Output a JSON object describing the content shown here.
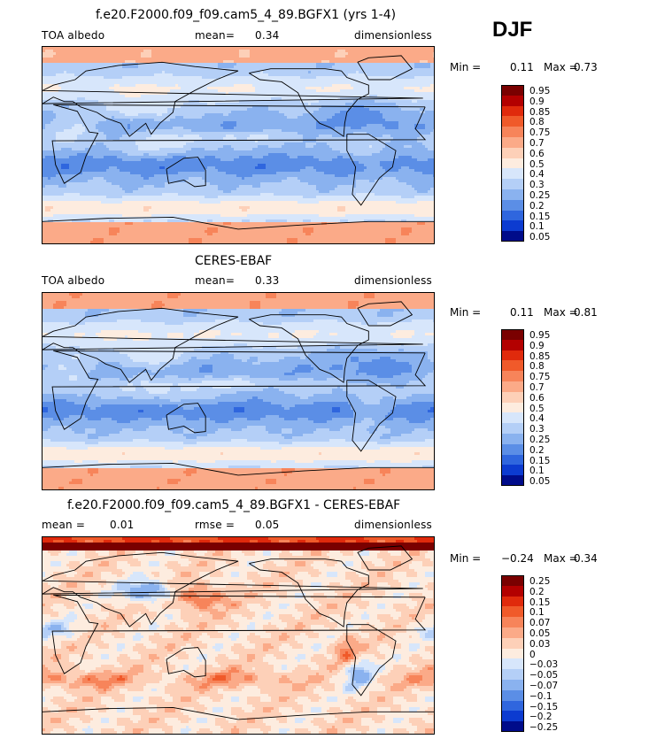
{
  "season": "DJF",
  "panels": [
    {
      "id": "model",
      "title": "f.e20.F2000.f09_f09.cam5_4_89.BGFX1 (yrs 1-4)",
      "left_label": "TOA albedo",
      "mid_label": "mean=",
      "mid_value": "0.34",
      "mid2_label": "",
      "mid2_value": "",
      "right_label": "dimensionless",
      "min_label": "Min =",
      "min_value": "0.11",
      "max_label": "Max =",
      "max_value": "0.73",
      "colorbar": {
        "labels": [
          "0.95",
          "0.9",
          "0.85",
          "0.8",
          "0.75",
          "0.7",
          "0.6",
          "0.5",
          "0.4",
          "0.3",
          "0.25",
          "0.2",
          "0.15",
          "0.1",
          "0.05"
        ],
        "colors": [
          "#7a0000",
          "#b30000",
          "#e02a0c",
          "#f05a2a",
          "#f7845a",
          "#fbaa88",
          "#fdd0b8",
          "#fdecdf",
          "#d7e6fb",
          "#b4cff7",
          "#8ab2ef",
          "#5b8ee6",
          "#2f66de",
          "#0c3bd0",
          "#000c8a"
        ]
      },
      "field": "albedo_model"
    },
    {
      "id": "obs",
      "title": "CERES-EBAF",
      "left_label": "TOA albedo",
      "mid_label": "mean=",
      "mid_value": "0.33",
      "mid2_label": "",
      "mid2_value": "",
      "right_label": "dimensionless",
      "min_label": "Min =",
      "min_value": "0.11",
      "max_label": "Max =",
      "max_value": "0.81",
      "colorbar": {
        "labels": [
          "0.95",
          "0.9",
          "0.85",
          "0.8",
          "0.75",
          "0.7",
          "0.6",
          "0.5",
          "0.4",
          "0.3",
          "0.25",
          "0.2",
          "0.15",
          "0.1",
          "0.05"
        ],
        "colors": [
          "#7a0000",
          "#b30000",
          "#e02a0c",
          "#f05a2a",
          "#f7845a",
          "#fbaa88",
          "#fdd0b8",
          "#fdecdf",
          "#d7e6fb",
          "#b4cff7",
          "#8ab2ef",
          "#5b8ee6",
          "#2f66de",
          "#0c3bd0",
          "#000c8a"
        ]
      },
      "field": "albedo_obs"
    },
    {
      "id": "diff",
      "title": "f.e20.F2000.f09_f09.cam5_4_89.BGFX1 - CERES-EBAF",
      "left_label": "mean =",
      "mid_label": "0.01",
      "mid_value": "",
      "mid2_label": "rmse =",
      "mid2_value": "0.05",
      "right_label": "dimensionless",
      "min_label": "Min =",
      "min_value": "−0.24",
      "max_label": "Max =",
      "max_value": "0.34",
      "colorbar": {
        "labels": [
          "0.25",
          "0.2",
          "0.15",
          "0.1",
          "0.07",
          "0.05",
          "0.03",
          "0",
          "−0.03",
          "−0.05",
          "−0.07",
          "−0.1",
          "−0.15",
          "−0.2",
          "−0.25"
        ],
        "colors": [
          "#7a0000",
          "#b30000",
          "#e02a0c",
          "#f05a2a",
          "#f7845a",
          "#fbaa88",
          "#fdd0b8",
          "#fdecdf",
          "#d7e6fb",
          "#b4cff7",
          "#8ab2ef",
          "#5b8ee6",
          "#2f66de",
          "#0c3bd0",
          "#000c8a"
        ]
      },
      "field": "albedo_diff"
    }
  ],
  "chart_data": [
    {
      "type": "heatmap",
      "title": "f.e20.F2000.f09_f09.cam5_4_89.BGFX1 (yrs 1-4)",
      "variable": "TOA albedo",
      "units": "dimensionless",
      "mean": 0.34,
      "min": 0.11,
      "max": 0.73,
      "contour_levels": [
        0.05,
        0.1,
        0.15,
        0.2,
        0.25,
        0.3,
        0.4,
        0.5,
        0.6,
        0.7,
        0.75,
        0.8,
        0.85,
        0.9,
        0.95
      ],
      "projection": "global cylindrical equidistant"
    },
    {
      "type": "heatmap",
      "title": "CERES-EBAF",
      "variable": "TOA albedo",
      "units": "dimensionless",
      "mean": 0.33,
      "min": 0.11,
      "max": 0.81,
      "contour_levels": [
        0.05,
        0.1,
        0.15,
        0.2,
        0.25,
        0.3,
        0.4,
        0.5,
        0.6,
        0.7,
        0.75,
        0.8,
        0.85,
        0.9,
        0.95
      ],
      "projection": "global cylindrical equidistant"
    },
    {
      "type": "heatmap",
      "title": "f.e20.F2000.f09_f09.cam5_4_89.BGFX1 - CERES-EBAF",
      "units": "dimensionless",
      "mean": 0.01,
      "rmse": 0.05,
      "min": -0.24,
      "max": 0.34,
      "contour_levels": [
        -0.25,
        -0.2,
        -0.15,
        -0.1,
        -0.07,
        -0.05,
        -0.03,
        0,
        0.03,
        0.05,
        0.07,
        0.1,
        0.15,
        0.2,
        0.25
      ],
      "projection": "global cylindrical equidistant"
    }
  ]
}
